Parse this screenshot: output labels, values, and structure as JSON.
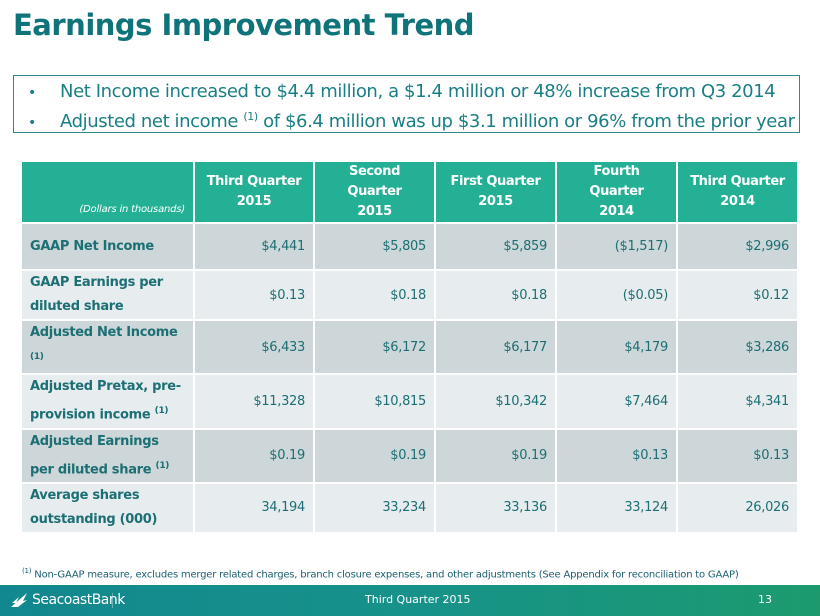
{
  "title": "Earnings Improvement Trend",
  "callout": {
    "bullets": [
      {
        "text": "Net Income increased to $4.4 million, a $1.4 million or 48% increase from Q3 2014"
      },
      {
        "pre": "Adjusted net income ",
        "sup": "(1)",
        "post": " of $6.4 million was up $3.1 million or 96% from the prior year"
      }
    ]
  },
  "table": {
    "corner_label": "(Dollars in thousands)",
    "columns": [
      {
        "line1": "Third Quarter",
        "line2": "2015"
      },
      {
        "line1": "Second Quarter",
        "line2": "2015"
      },
      {
        "line1": "First Quarter",
        "line2": "2015"
      },
      {
        "line1": "Fourth Quarter",
        "line2": "2014"
      },
      {
        "line1": "Third Quarter",
        "line2": "2014"
      }
    ],
    "rows": [
      {
        "label": "GAAP Net Income",
        "sup": "",
        "values": [
          "$4,441",
          "$5,805",
          "$5,859",
          "($1,517)",
          "$2,996"
        ]
      },
      {
        "label": "GAAP Earnings per diluted share",
        "sup": "",
        "values": [
          "$0.13",
          "$0.18",
          "$0.18",
          "($0.05)",
          "$0.12"
        ]
      },
      {
        "label": "Adjusted Net Income ",
        "sup": "(1)",
        "values": [
          "$6,433",
          "$6,172",
          "$6,177",
          "$4,179",
          "$3,286"
        ]
      },
      {
        "label": "Adjusted Pretax, pre-provision income ",
        "sup": "(1)",
        "values": [
          "$11,328",
          "$10,815",
          "$10,342",
          "$7,464",
          "$4,341"
        ]
      },
      {
        "label": "Adjusted Earnings per diluted share ",
        "sup": "(1)",
        "values": [
          "$0.19",
          "$0.19",
          "$0.19",
          "$0.13",
          "$0.13"
        ]
      },
      {
        "label": "Average shares outstanding (000)",
        "sup": "",
        "values": [
          "34,194",
          "33,234",
          "33,136",
          "33,124",
          "26,026"
        ]
      }
    ]
  },
  "footnote": {
    "sup": "(1)",
    "text": " Non-GAAP measure, excludes merger related charges, branch closure expenses, and other adjustments (See Appendix for reconciliation to GAAP)"
  },
  "footer": {
    "logo_text": "SeacoastBank",
    "logo_icon": "sail-icon",
    "period": "Third Quarter 2015",
    "page_number": "13"
  }
}
